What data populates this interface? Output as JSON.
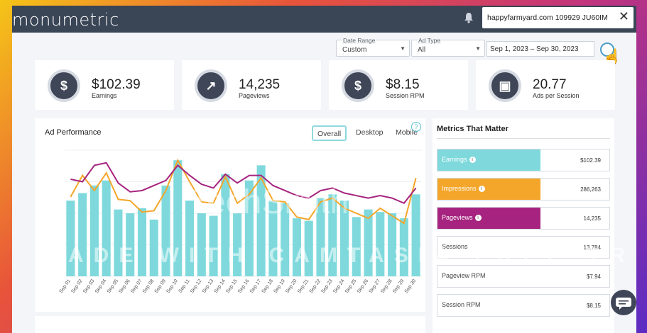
{
  "app": {
    "logo": "monumetric",
    "site": "happyfarmyard.com 109929 JU60IM",
    "close_glyph": "✕"
  },
  "filters": {
    "date_range": {
      "label": "Date Range",
      "value": "Custom"
    },
    "ad_type": {
      "label": "Ad Type",
      "value": "All"
    },
    "dates": "Sep 1, 2023 – Sep 30, 2023"
  },
  "cards": [
    {
      "icon": "dollar-icon",
      "glyph": "$",
      "value": "$102.39",
      "label": "Earnings"
    },
    {
      "icon": "trend-icon",
      "glyph": "↗",
      "value": "14,235",
      "label": "Pageviews"
    },
    {
      "icon": "session-rpm-icon",
      "glyph": "$",
      "value": "$8.15",
      "label": "Session RPM"
    },
    {
      "icon": "ad-icon",
      "glyph": "▣",
      "value": "20.77",
      "label": "Ads per Session"
    }
  ],
  "performance": {
    "title": "Ad Performance",
    "tabs": [
      "Overall",
      "Desktop",
      "Mobile"
    ],
    "help": "?"
  },
  "chart_data": {
    "type": "bar",
    "categories": [
      "Sep 01",
      "Sep 02",
      "Sep 03",
      "Sep 04",
      "Sep 05",
      "Sep 06",
      "Sep 07",
      "Sep 08",
      "Sep 09",
      "Sep 10",
      "Sep 11",
      "Sep 12",
      "Sep 13",
      "Sep 14",
      "Sep 15",
      "Sep 16",
      "Sep 17",
      "Sep 18",
      "Sep 19",
      "Sep 20",
      "Sep 21",
      "Sep 22",
      "Sep 23",
      "Sep 24",
      "Sep 25",
      "Sep 26",
      "Sep 27",
      "Sep 28",
      "Sep 29",
      "Sep 30"
    ],
    "series": [
      {
        "values": [
          60,
          66,
          72,
          76,
          53,
          50,
          54,
          45,
          72,
          92,
          60,
          50,
          48,
          81,
          50,
          76,
          88,
          60,
          58,
          46,
          44,
          62,
          65,
          60,
          47,
          53,
          51,
          50,
          46,
          65
        ]
      },
      {
        "values": [
          63,
          80,
          68,
          82,
          61,
          60,
          51,
          52,
          68,
          92,
          75,
          59,
          58,
          79,
          58,
          65,
          78,
          60,
          59,
          47,
          45,
          59,
          62,
          54,
          50,
          46,
          54,
          48,
          42,
          78
        ]
      },
      {
        "values": [
          77,
          75,
          88,
          90,
          74,
          67,
          68,
          72,
          76,
          88,
          80,
          73,
          70,
          81,
          74,
          80,
          80,
          72,
          68,
          64,
          62,
          68,
          70,
          66,
          64,
          62,
          64,
          62,
          58,
          70
        ]
      }
    ],
    "colors": [
      "#7fd9dc",
      "#f4a62a",
      "#a6247f"
    ],
    "ylim": [
      0,
      100
    ]
  },
  "metrics": {
    "title": "Metrics That Matter",
    "rows": [
      {
        "label": "Earnings",
        "value": "$102.39",
        "color": "#7fd9dc",
        "filled": true
      },
      {
        "label": "Impressions",
        "value": "286,263",
        "color": "#f4a62a",
        "filled": true
      },
      {
        "label": "Pageviews",
        "value": "14,235",
        "color": "#a6247f",
        "filled": true
      },
      {
        "label": "Sessions",
        "value": "13,784",
        "color": "#ffffff",
        "filled": false
      },
      {
        "label": "Pageview RPM",
        "value": "$7.94",
        "color": "#ffffff",
        "filled": false
      },
      {
        "label": "Session RPM",
        "value": "$8.15",
        "color": "#ffffff",
        "filled": false
      }
    ]
  },
  "watermark": {
    "line1": "TechSmith",
    "line2": "MADE WITH CAMTASIA FREE TRIAL"
  }
}
